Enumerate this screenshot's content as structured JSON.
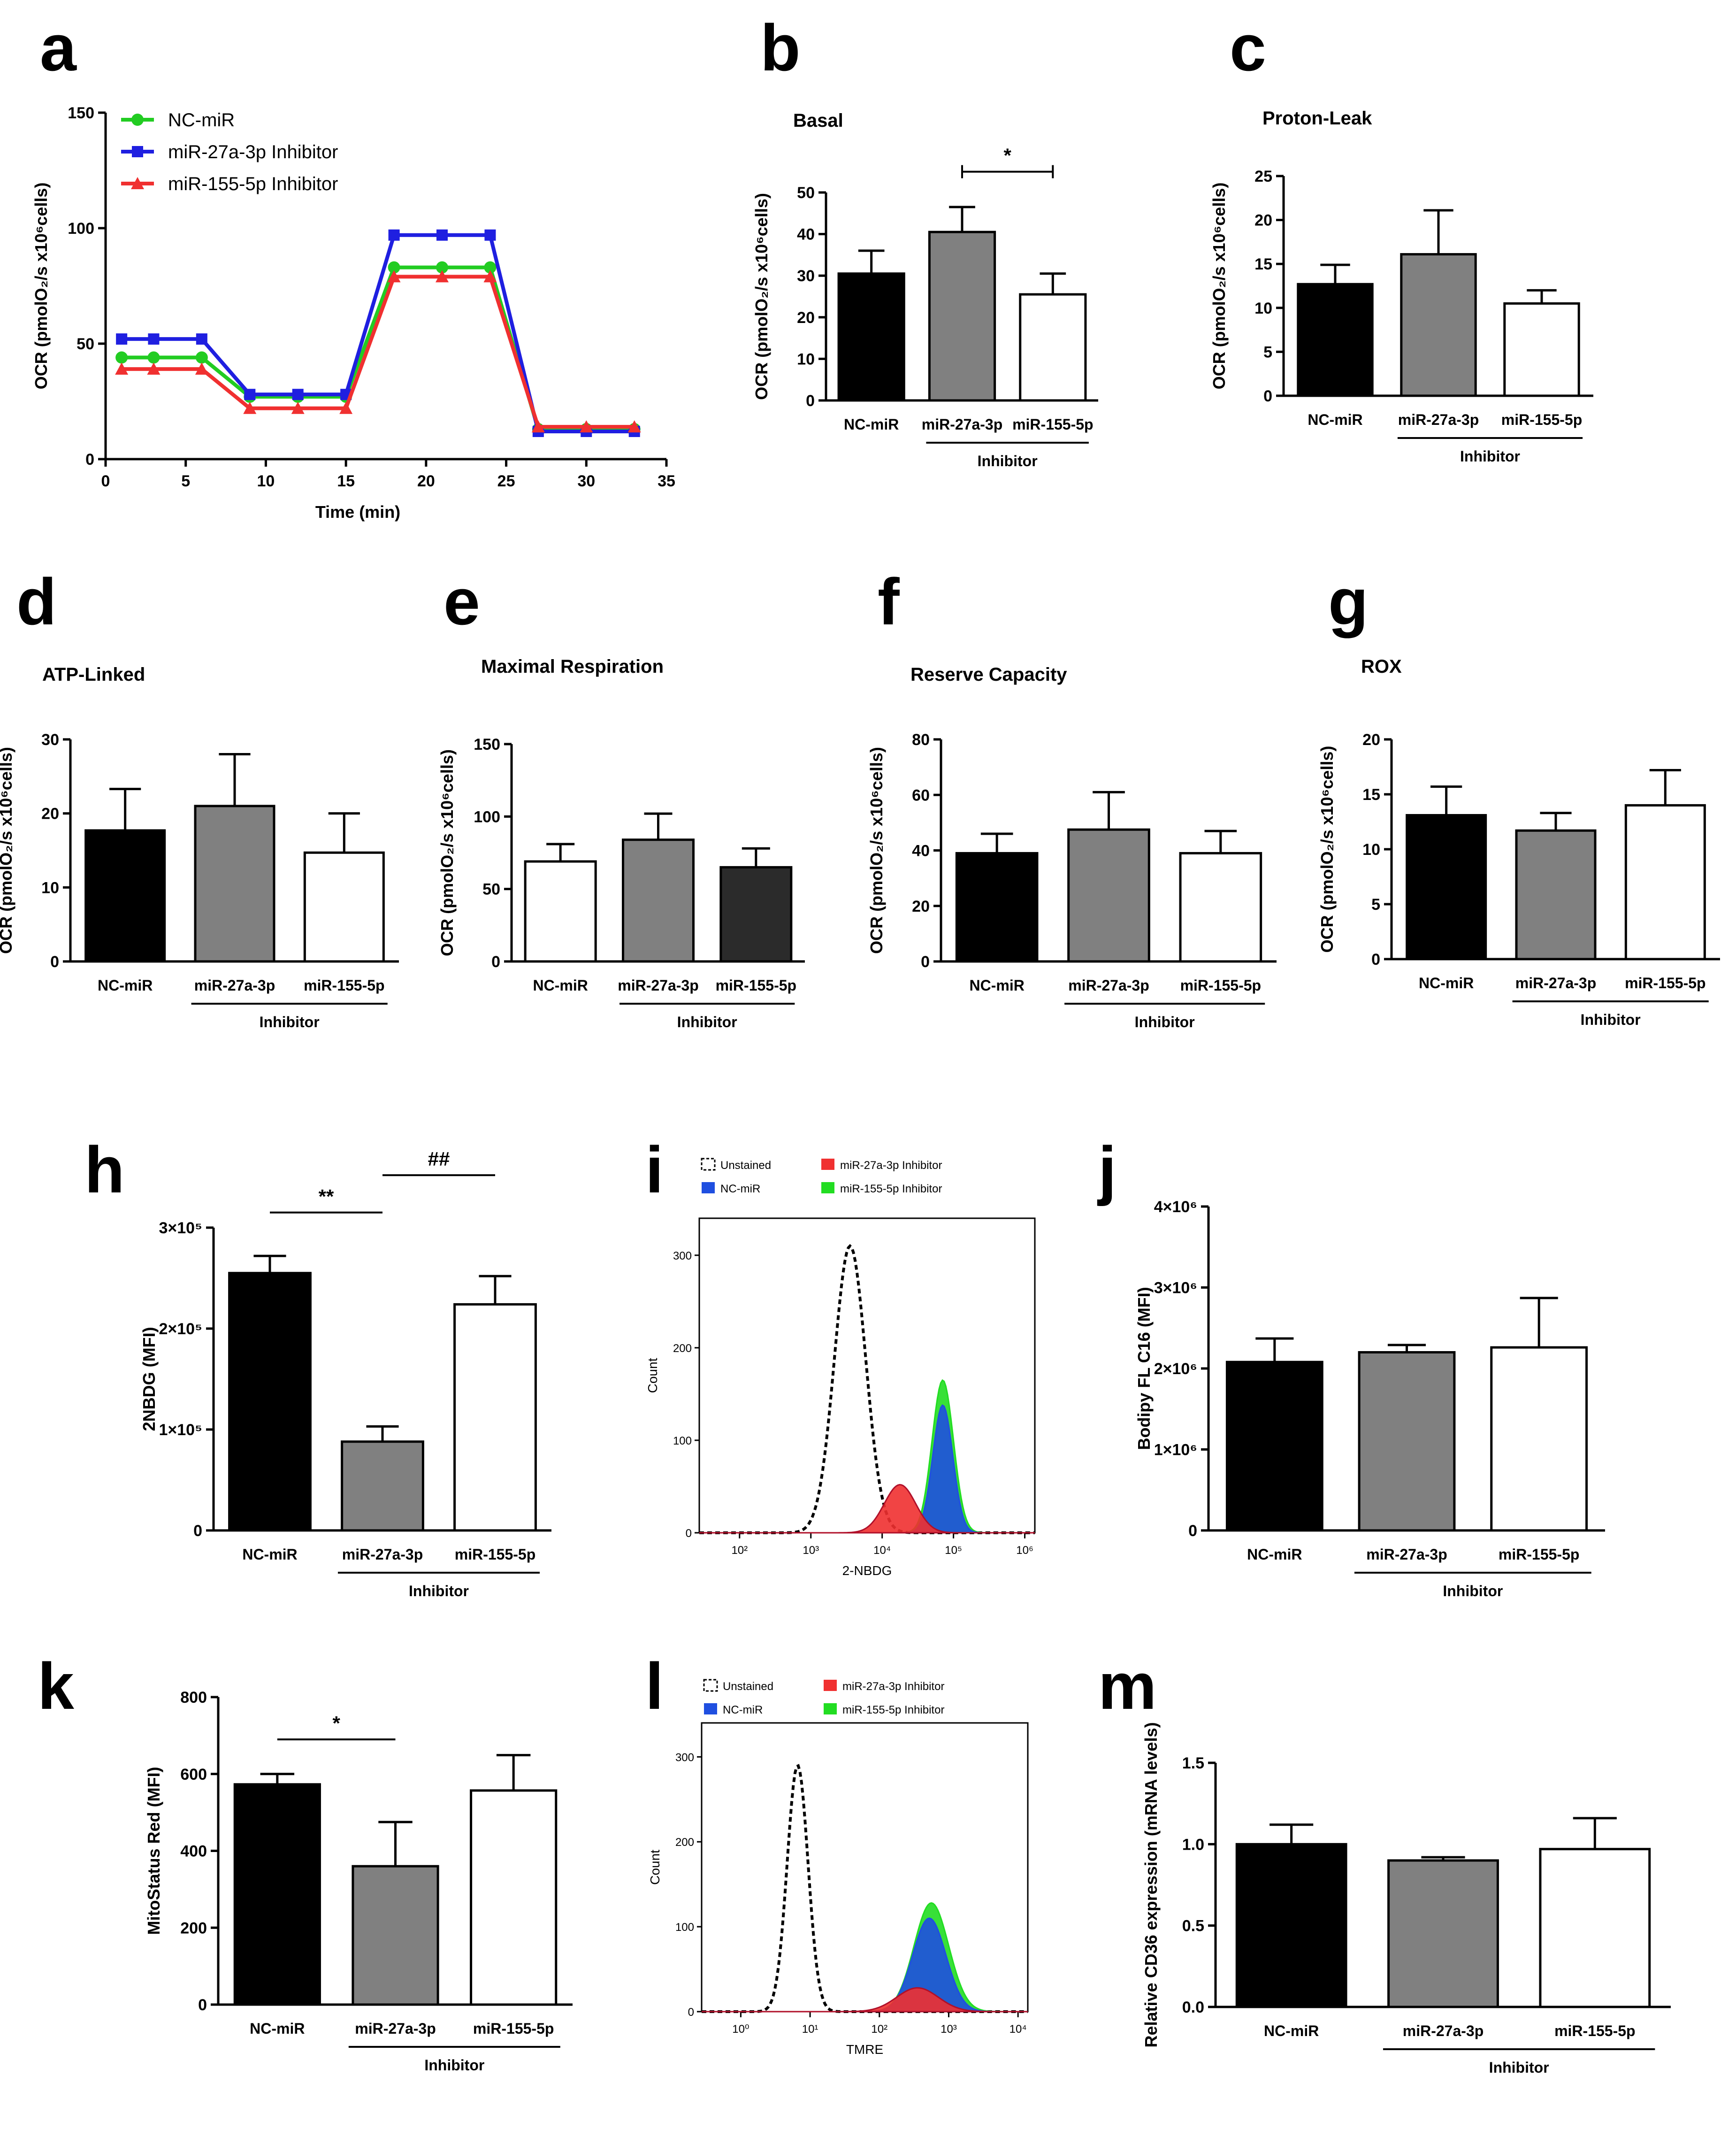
{
  "chart_data": [
    {
      "id": "a",
      "panel_label": "a",
      "type": "line",
      "xlabel": "Time (min)",
      "ylabel": "OCR (pmolO₂/s x10⁶cells)",
      "xlim": [
        0,
        35
      ],
      "ylim": [
        0,
        150
      ],
      "xticks": [
        0,
        5,
        10,
        15,
        20,
        25,
        30,
        35
      ],
      "yticks": [
        0,
        50,
        100,
        150
      ],
      "x": [
        1,
        3,
        6,
        9,
        12,
        15,
        18,
        21,
        24,
        27,
        30,
        33
      ],
      "series": [
        {
          "name": "NC-miR",
          "color": "#22cc22",
          "marker": "circle",
          "values": [
            44,
            44,
            44,
            27,
            27,
            27,
            83,
            83,
            83,
            13,
            13,
            13
          ]
        },
        {
          "name": "miR-27a-3p Inhibitor",
          "color": "#1f1fe0",
          "marker": "square",
          "values": [
            52,
            52,
            52,
            28,
            28,
            28,
            97,
            97,
            97,
            12,
            12,
            12
          ]
        },
        {
          "name": "miR-155-5p Inhibitor",
          "color": "#f03030",
          "marker": "triangle",
          "values": [
            39,
            39,
            39,
            22,
            22,
            22,
            79,
            79,
            79,
            14,
            14,
            14
          ]
        }
      ],
      "legend": "top-left"
    },
    {
      "id": "b",
      "panel_label": "b",
      "type": "bar",
      "title": "Basal",
      "ylabel": "OCR (pmolO₂/s x10⁶cells)",
      "ylim": [
        0,
        50
      ],
      "yticks": [
        0,
        10,
        20,
        30,
        40,
        50
      ],
      "categories": [
        "NC-miR",
        "miR-27a-3p",
        "miR-155-5p"
      ],
      "values": [
        30.5,
        40.5,
        25.5
      ],
      "errors": [
        5.5,
        6,
        5
      ],
      "colors": [
        "#000000",
        "#808080",
        "#ffffff"
      ],
      "group_label": "Inhibitor",
      "significance": [
        {
          "from": 1,
          "to": 2,
          "label": "*",
          "y": 55
        }
      ]
    },
    {
      "id": "c",
      "panel_label": "c",
      "type": "bar",
      "title": "Proton-Leak",
      "ylabel": "OCR (pmolO₂/s x10⁶cells)",
      "ylim": [
        0,
        25
      ],
      "yticks": [
        0,
        5,
        10,
        15,
        20,
        25
      ],
      "categories": [
        "NC-miR",
        "miR-27a-3p",
        "miR-155-5p"
      ],
      "values": [
        12.7,
        16.1,
        10.5
      ],
      "errors": [
        2.2,
        5,
        1.5
      ],
      "colors": [
        "#000000",
        "#808080",
        "#ffffff"
      ],
      "group_label": "Inhibitor"
    },
    {
      "id": "d",
      "panel_label": "d",
      "type": "bar",
      "title": "ATP-Linked",
      "ylabel": "OCR (pmolO₂/s x10⁶cells)",
      "ylim": [
        0,
        30
      ],
      "yticks": [
        0,
        10,
        20,
        30
      ],
      "categories": [
        "NC-miR",
        "miR-27a-3p",
        "miR-155-5p"
      ],
      "values": [
        17.7,
        21,
        14.7
      ],
      "errors": [
        5.6,
        7,
        5.3
      ],
      "colors": [
        "#000000",
        "#808080",
        "#ffffff"
      ],
      "group_label": "Inhibitor"
    },
    {
      "id": "e",
      "panel_label": "e",
      "type": "bar",
      "title": "Maximal Respiration",
      "ylabel": "OCR (pmolO₂/s x10⁶cells)",
      "ylim": [
        0,
        150
      ],
      "yticks": [
        0,
        50,
        100,
        150
      ],
      "categories": [
        "NC-miR",
        "miR-27a-3p",
        "miR-155-5p"
      ],
      "values": [
        69,
        84,
        65
      ],
      "errors": [
        12,
        18,
        13
      ],
      "colors": [
        "#ffffff",
        "#808080",
        "#2b2b2b"
      ],
      "group_label": "Inhibitor"
    },
    {
      "id": "f",
      "panel_label": "f",
      "type": "bar",
      "title": "Reserve Capacity",
      "ylabel": "OCR (pmolO₂/s x10⁶cells)",
      "ylim": [
        0,
        80
      ],
      "yticks": [
        0,
        20,
        40,
        60,
        80
      ],
      "categories": [
        "NC-miR",
        "miR-27a-3p",
        "miR-155-5p"
      ],
      "values": [
        39,
        47.5,
        39
      ],
      "errors": [
        7,
        13.5,
        8
      ],
      "colors": [
        "#000000",
        "#808080",
        "#ffffff"
      ],
      "group_label": "Inhibitor"
    },
    {
      "id": "g",
      "panel_label": "g",
      "type": "bar",
      "title": "ROX",
      "ylabel": "OCR (pmolO₂/s x10⁶cells)",
      "ylim": [
        0,
        20
      ],
      "yticks": [
        0,
        5,
        10,
        15,
        20
      ],
      "categories": [
        "NC-miR",
        "miR-27a-3p",
        "miR-155-5p"
      ],
      "values": [
        13.1,
        11.7,
        14
      ],
      "errors": [
        2.6,
        1.6,
        3.2
      ],
      "colors": [
        "#000000",
        "#808080",
        "#ffffff"
      ],
      "group_label": "Inhibitor"
    },
    {
      "id": "h",
      "panel_label": "h",
      "type": "bar",
      "ylabel": "2NBDG (MFI)",
      "ylim": [
        0,
        300000
      ],
      "yticks": [
        0,
        100000,
        200000,
        300000
      ],
      "ytick_labels": [
        "0",
        "1×10⁵",
        "2×10⁵",
        "3×10⁵"
      ],
      "categories": [
        "NC-miR",
        "miR-27a-3p",
        "miR-155-5p"
      ],
      "values": [
        255000,
        88000,
        224000
      ],
      "errors": [
        17000,
        15000,
        28000
      ],
      "colors": [
        "#000000",
        "#808080",
        "#ffffff"
      ],
      "group_label": "Inhibitor",
      "significance": [
        {
          "from": 0,
          "to": 1,
          "label": "**",
          "y": 315000
        },
        {
          "from": 1,
          "to": 2,
          "label": "##",
          "y": 352000
        }
      ]
    },
    {
      "id": "i",
      "panel_label": "i",
      "type": "area",
      "xlabel": "2-NBDG",
      "ylabel": "Count",
      "xticks": [
        "10²",
        "10³",
        "10⁴",
        "10⁵",
        "10⁶"
      ],
      "yticks": [
        0,
        100,
        200,
        300
      ],
      "legend_entries": [
        "Unstained",
        "NC-miR",
        "miR-27a-3p Inhibitor",
        "miR-155-5p Inhibitor"
      ],
      "legend_colors": [
        "#000000",
        "#1f4fe0",
        "#f03030",
        "#22dd22"
      ],
      "histograms": [
        {
          "name": "Unstained",
          "peak_log10": 3.55,
          "width": 0.22,
          "peak": 310,
          "style": "dashed"
        },
        {
          "name": "miR-155-5p Inhibitor",
          "peak_log10": 4.85,
          "width": 0.15,
          "peak": 165
        },
        {
          "name": "NC-miR",
          "peak_log10": 4.85,
          "width": 0.14,
          "peak": 138
        },
        {
          "name": "miR-27a-3p Inhibitor",
          "peak_log10": 4.25,
          "width": 0.22,
          "peak": 52
        }
      ]
    },
    {
      "id": "j",
      "panel_label": "j",
      "type": "bar",
      "ylabel": "Bodipy FL C16 (MFI)",
      "ylim": [
        0,
        4000000
      ],
      "yticks": [
        0,
        1000000,
        2000000,
        3000000,
        4000000
      ],
      "ytick_labels": [
        "0",
        "1×10⁶",
        "2×10⁶",
        "3×10⁶",
        "4×10⁶"
      ],
      "categories": [
        "NC-miR",
        "miR-27a-3p",
        "miR-155-5p"
      ],
      "values": [
        2080000,
        2200000,
        2260000
      ],
      "errors": [
        290000,
        90000,
        610000
      ],
      "colors": [
        "#000000",
        "#808080",
        "#ffffff"
      ],
      "group_label": "Inhibitor"
    },
    {
      "id": "k",
      "panel_label": "k",
      "type": "bar",
      "ylabel": "MitoStatus Red (MFI)",
      "ylim": [
        0,
        800
      ],
      "yticks": [
        0,
        200,
        400,
        600,
        800
      ],
      "categories": [
        "NC-miR",
        "miR-27a-3p",
        "miR-155-5p"
      ],
      "values": [
        573,
        360,
        557
      ],
      "errors": [
        27,
        115,
        92
      ],
      "colors": [
        "#000000",
        "#808080",
        "#ffffff"
      ],
      "group_label": "Inhibitor",
      "significance": [
        {
          "from": 0,
          "to": 1,
          "label": "*",
          "y": 690
        }
      ]
    },
    {
      "id": "l",
      "panel_label": "l",
      "type": "area",
      "xlabel": "TMRE",
      "ylabel": "Count",
      "xticks": [
        "10⁰",
        "10¹",
        "10²",
        "10³",
        "10⁴"
      ],
      "yticks": [
        0,
        100,
        200,
        300
      ],
      "legend_entries": [
        "Unstained",
        "NC-miR",
        "miR-27a-3p Inhibitor",
        "miR-155-5p Inhibitor"
      ],
      "legend_colors": [
        "#000000",
        "#1f4fe0",
        "#f03030",
        "#22dd22"
      ],
      "histograms": [
        {
          "name": "Unstained",
          "peak_log10": 0.82,
          "width": 0.15,
          "peak": 290,
          "style": "dashed"
        },
        {
          "name": "miR-155-5p Inhibitor",
          "peak_log10": 2.75,
          "width": 0.25,
          "peak": 128
        },
        {
          "name": "NC-miR",
          "peak_log10": 2.72,
          "width": 0.24,
          "peak": 110
        },
        {
          "name": "miR-27a-3p Inhibitor",
          "peak_log10": 2.55,
          "width": 0.3,
          "peak": 28
        }
      ]
    },
    {
      "id": "m",
      "panel_label": "m",
      "type": "bar",
      "ylabel": "Relative CD36 expression (mRNA levels)",
      "ylim": [
        0,
        1.5
      ],
      "yticks": [
        0,
        0.5,
        1.0,
        1.5
      ],
      "ytick_labels": [
        "0.0",
        "0.5",
        "1.0",
        "1.5"
      ],
      "categories": [
        "NC-miR",
        "miR-27a-3p",
        "miR-155-5p"
      ],
      "values": [
        1.0,
        0.9,
        0.97
      ],
      "errors": [
        0.12,
        0.02,
        0.19
      ],
      "colors": [
        "#000000",
        "#808080",
        "#ffffff"
      ],
      "group_label": "Inhibitor"
    }
  ]
}
